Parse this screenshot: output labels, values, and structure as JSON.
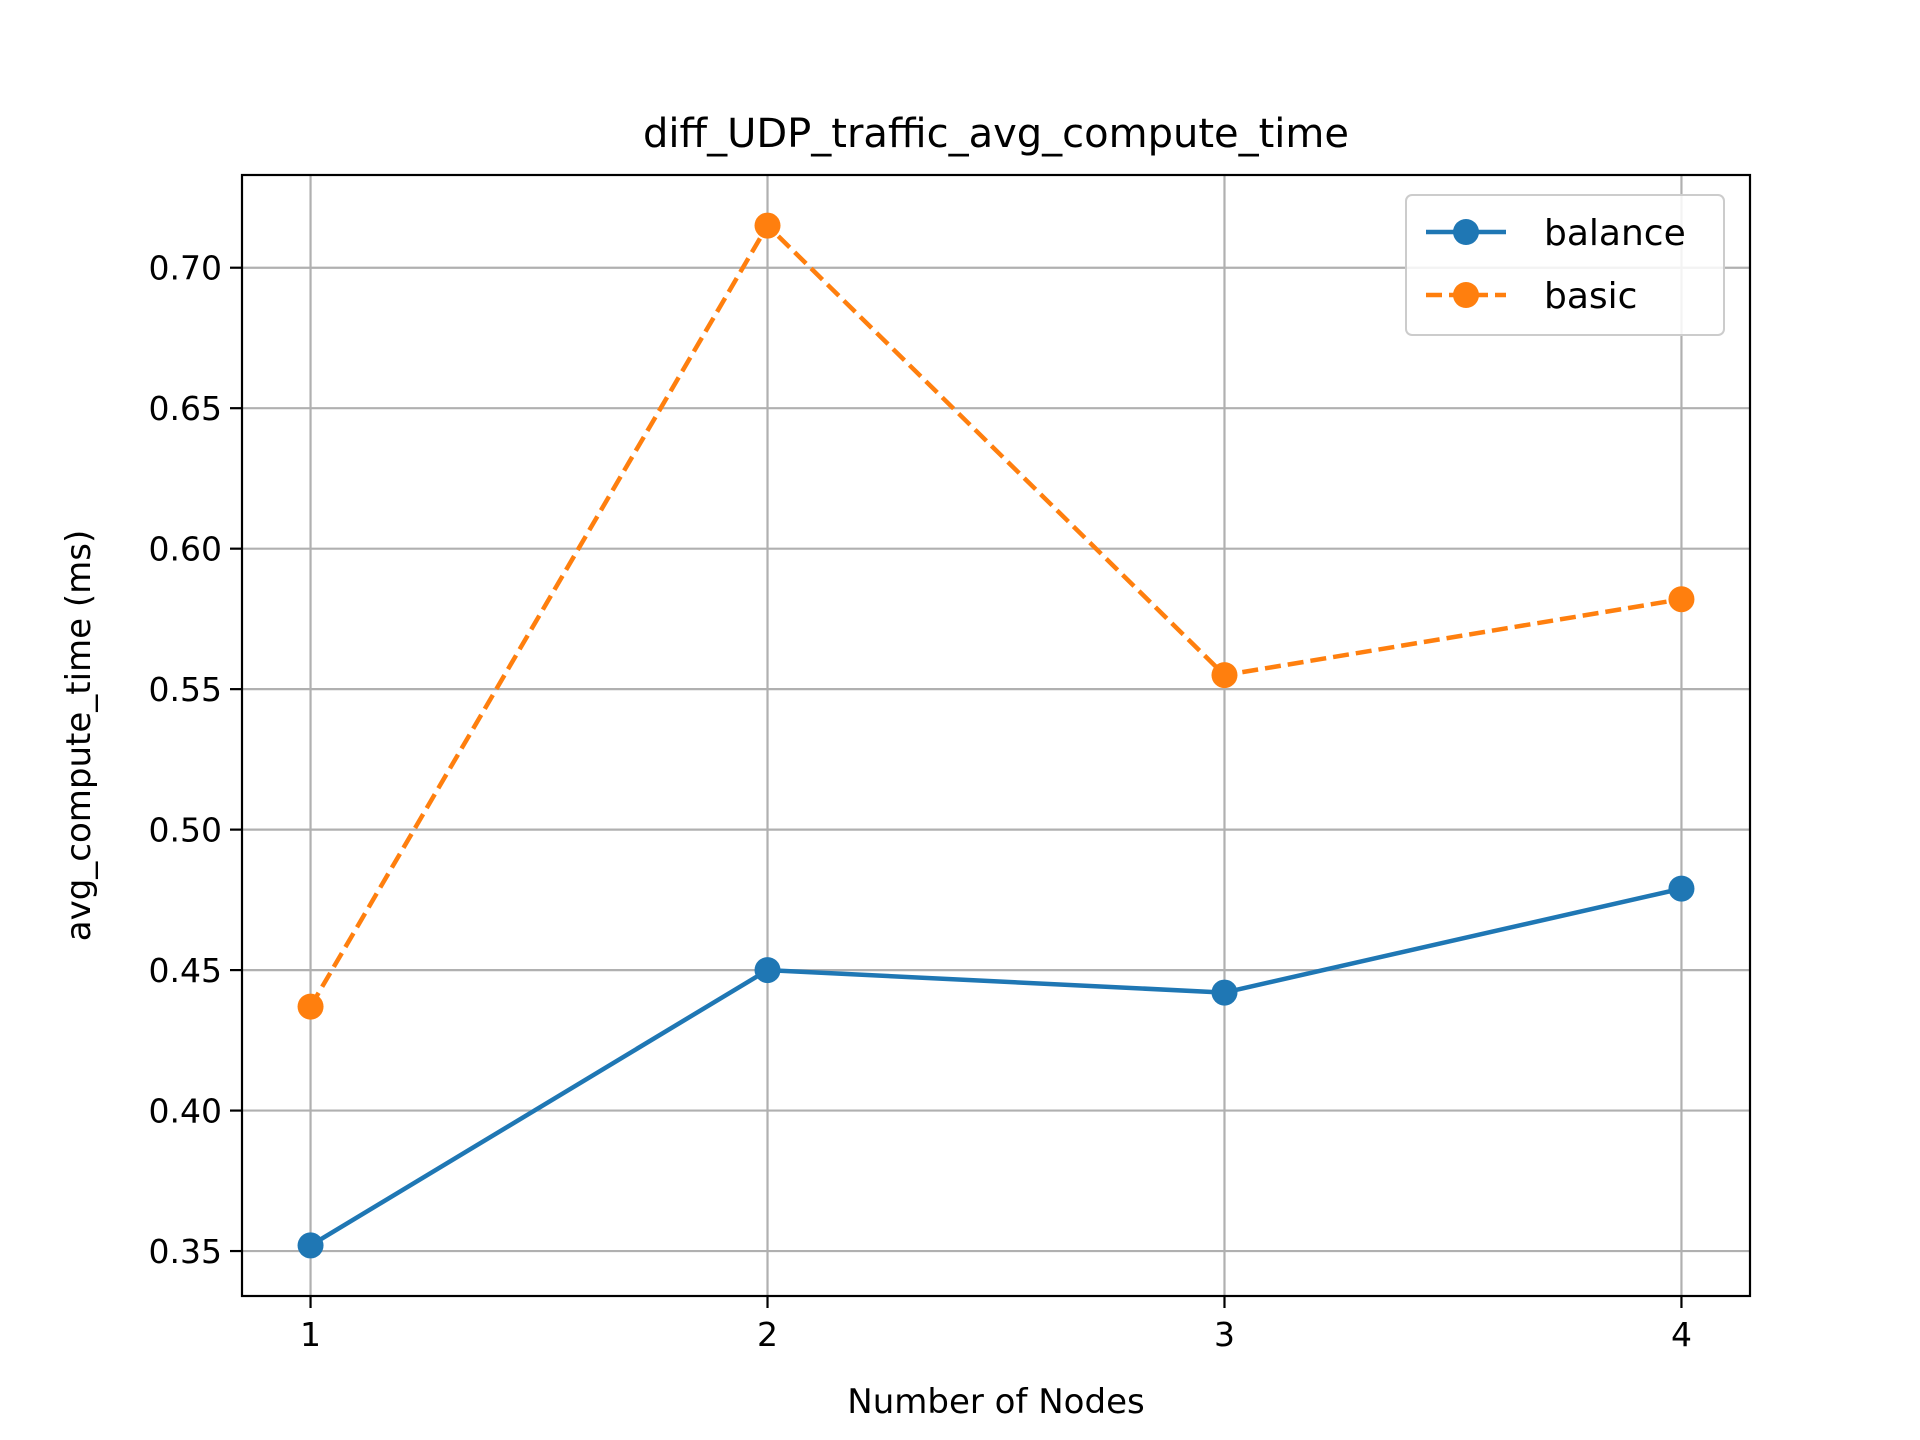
{
  "chart_data": {
    "type": "line",
    "title": "diff_UDP_traffic_avg_compute_time",
    "xlabel": "Number of Nodes",
    "ylabel": "avg_compute_time (ms)",
    "x": [
      1,
      2,
      3,
      4
    ],
    "xticks": [
      "1",
      "2",
      "3",
      "4"
    ],
    "yticks": [
      "0.35",
      "0.40",
      "0.45",
      "0.50",
      "0.55",
      "0.60",
      "0.65",
      "0.70"
    ],
    "xlim": [
      0.85,
      4.15
    ],
    "ylim": [
      0.334,
      0.733
    ],
    "grid": true,
    "legend_position": "top-right",
    "series": [
      {
        "name": "balance",
        "values": [
          0.352,
          0.45,
          0.442,
          0.479
        ],
        "color": "#1f77b4",
        "style": "solid",
        "marker": "circle"
      },
      {
        "name": "basic",
        "values": [
          0.437,
          0.715,
          0.555,
          0.582
        ],
        "color": "#ff7f0e",
        "style": "dashed",
        "marker": "circle"
      }
    ]
  }
}
